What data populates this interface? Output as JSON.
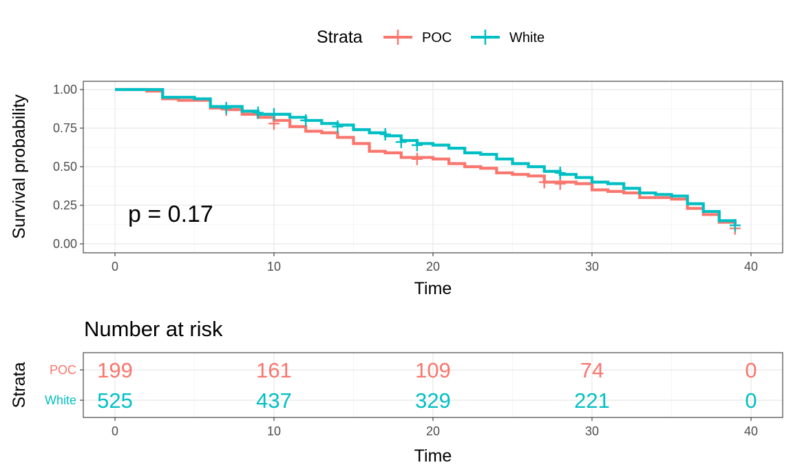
{
  "chart_data": [
    {
      "type": "line",
      "subtype": "kaplan-meier-step",
      "title": "",
      "xlabel": "Time",
      "ylabel": "Survival probability",
      "xlim": [
        0,
        40
      ],
      "ylim": [
        0,
        1
      ],
      "x_ticks": [
        "0",
        "10",
        "20",
        "30",
        "40"
      ],
      "y_ticks": [
        "0.00",
        "0.25",
        "0.50",
        "0.75",
        "1.00"
      ],
      "grid": true,
      "legend": {
        "title": "Strata",
        "position": "top",
        "entries": [
          "POC",
          "White"
        ]
      },
      "annotation": "p = 0.17",
      "series": [
        {
          "name": "POC",
          "color": "#F8766D",
          "steps": [
            [
              0,
              1.0
            ],
            [
              2,
              0.99
            ],
            [
              3,
              0.94
            ],
            [
              4,
              0.93
            ],
            [
              5,
              0.93
            ],
            [
              6,
              0.88
            ],
            [
              7,
              0.87
            ],
            [
              8,
              0.84
            ],
            [
              9,
              0.82
            ],
            [
              10,
              0.8
            ],
            [
              11,
              0.76
            ],
            [
              12,
              0.73
            ],
            [
              13,
              0.72
            ],
            [
              14,
              0.69
            ],
            [
              15,
              0.65
            ],
            [
              16,
              0.6
            ],
            [
              17,
              0.59
            ],
            [
              18,
              0.56
            ],
            [
              20,
              0.55
            ],
            [
              21,
              0.52
            ],
            [
              22,
              0.5
            ],
            [
              23,
              0.49
            ],
            [
              24,
              0.46
            ],
            [
              25,
              0.45
            ],
            [
              26,
              0.44
            ],
            [
              27,
              0.4
            ],
            [
              29,
              0.39
            ],
            [
              30,
              0.35
            ],
            [
              31,
              0.34
            ],
            [
              32,
              0.33
            ],
            [
              33,
              0.3
            ],
            [
              35,
              0.29
            ],
            [
              36,
              0.23
            ],
            [
              37,
              0.19
            ],
            [
              38,
              0.14
            ],
            [
              39,
              0.12
            ]
          ],
          "censored": [
            [
              7,
              0.87
            ],
            [
              10,
              0.78
            ],
            [
              19,
              0.55
            ],
            [
              27,
              0.4
            ],
            [
              28,
              0.39
            ],
            [
              39,
              0.1
            ]
          ]
        },
        {
          "name": "White",
          "color": "#00BFC4",
          "steps": [
            [
              0,
              1.0
            ],
            [
              3,
              0.95
            ],
            [
              5,
              0.94
            ],
            [
              6,
              0.89
            ],
            [
              8,
              0.86
            ],
            [
              9,
              0.84
            ],
            [
              11,
              0.82
            ],
            [
              12,
              0.8
            ],
            [
              13,
              0.78
            ],
            [
              14,
              0.77
            ],
            [
              15,
              0.74
            ],
            [
              16,
              0.72
            ],
            [
              17,
              0.7
            ],
            [
              18,
              0.67
            ],
            [
              19,
              0.65
            ],
            [
              20,
              0.64
            ],
            [
              21,
              0.62
            ],
            [
              22,
              0.59
            ],
            [
              23,
              0.58
            ],
            [
              24,
              0.55
            ],
            [
              25,
              0.52
            ],
            [
              26,
              0.5
            ],
            [
              27,
              0.47
            ],
            [
              28,
              0.45
            ],
            [
              29,
              0.43
            ],
            [
              30,
              0.4
            ],
            [
              31,
              0.39
            ],
            [
              32,
              0.36
            ],
            [
              33,
              0.33
            ],
            [
              34,
              0.32
            ],
            [
              35,
              0.31
            ],
            [
              36,
              0.26
            ],
            [
              37,
              0.21
            ],
            [
              38,
              0.15
            ],
            [
              39,
              0.13
            ]
          ],
          "censored": [
            [
              7,
              0.88
            ],
            [
              9,
              0.85
            ],
            [
              10,
              0.84
            ],
            [
              12,
              0.8
            ],
            [
              14,
              0.76
            ],
            [
              17,
              0.71
            ],
            [
              18,
              0.66
            ],
            [
              19,
              0.64
            ],
            [
              28,
              0.46
            ],
            [
              39,
              0.12
            ]
          ]
        }
      ]
    },
    {
      "type": "table",
      "title": "Number at risk",
      "xlabel": "Time",
      "ylabel": "Strata",
      "xlim": [
        0,
        40
      ],
      "x_ticks": [
        "0",
        "10",
        "20",
        "30",
        "40"
      ],
      "columns": [
        0,
        10,
        20,
        30,
        40
      ],
      "rows": [
        {
          "name": "POC",
          "color": "#F8766D",
          "values": [
            "199",
            "161",
            "109",
            "74",
            "0"
          ]
        },
        {
          "name": "White",
          "color": "#00BFC4",
          "values": [
            "525",
            "437",
            "329",
            "221",
            "0"
          ]
        }
      ]
    }
  ]
}
